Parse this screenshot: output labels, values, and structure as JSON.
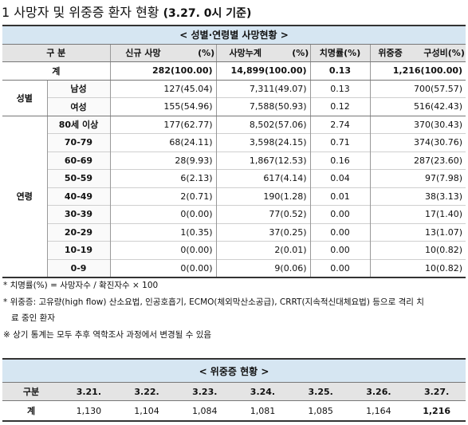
{
  "title": {
    "main": "1  사망자 및 위중증 환자 현황 ",
    "sub": "(3.27. 0시 기준)"
  },
  "table1": {
    "caption": "< 성별·연령별 사망현황 >",
    "headers": {
      "category": "구 분",
      "new_deaths": "신규 사망",
      "new_deaths_pct": "(%)",
      "cum_deaths": "사망누계",
      "cum_deaths_pct": "(%)",
      "fatality": "치명률(%)",
      "critical": "위중증",
      "critical_ratio": "구성비(%)"
    },
    "total": {
      "label": "계",
      "new": "282(100.00)",
      "cum": "14,899(100.00)",
      "rate": "0.13",
      "critical": "1,216(100.00)"
    },
    "sex_group": "성별",
    "sex_rows": [
      {
        "label": "남성",
        "new": "127(45.04)",
        "cum": "7,311(49.07)",
        "rate": "0.13",
        "critical": "700(57.57)"
      },
      {
        "label": "여성",
        "new": "155(54.96)",
        "cum": "7,588(50.93)",
        "rate": "0.12",
        "critical": "516(42.43)"
      }
    ],
    "age_group": "연령",
    "age_rows": [
      {
        "label": "80세 이상",
        "new": "177(62.77)",
        "cum": "8,502(57.06)",
        "rate": "2.74",
        "critical": "370(30.43)"
      },
      {
        "label": "70-79",
        "new": "68(24.11)",
        "cum": "3,598(24.15)",
        "rate": "0.71",
        "critical": "374(30.76)"
      },
      {
        "label": "60-69",
        "new": "28(9.93)",
        "cum": "1,867(12.53)",
        "rate": "0.16",
        "critical": "287(23.60)"
      },
      {
        "label": "50-59",
        "new": "6(2.13)",
        "cum": "617(4.14)",
        "rate": "0.04",
        "critical": "97(7.98)"
      },
      {
        "label": "40-49",
        "new": "2(0.71)",
        "cum": "190(1.28)",
        "rate": "0.01",
        "critical": "38(3.13)"
      },
      {
        "label": "30-39",
        "new": "0(0.00)",
        "cum": "77(0.52)",
        "rate": "0.00",
        "critical": "17(1.40)"
      },
      {
        "label": "20-29",
        "new": "1(0.35)",
        "cum": "37(0.25)",
        "rate": "0.00",
        "critical": "13(1.07)"
      },
      {
        "label": "10-19",
        "new": "0(0.00)",
        "cum": "2(0.01)",
        "rate": "0.00",
        "critical": "10(0.82)"
      },
      {
        "label": "0-9",
        "new": "0(0.00)",
        "cum": "9(0.06)",
        "rate": "0.00",
        "critical": "10(0.82)"
      }
    ]
  },
  "notes": [
    "* 치명률(%) = 사망자수 / 확진자수 × 100",
    "* 위중증: 고유량(high flow) 산소요법, 인공호흡기, ECMO(체외막산소공급), CRRT(지속적신대체요법) 등으로 격리 치",
    "  료 중인 환자",
    "※ 상기 통계는 모두 추후 역학조사 과정에서 변경될 수 있음"
  ],
  "table2": {
    "caption": "< 위중증 현황 >",
    "headers": [
      "구분",
      "3.21.",
      "3.22.",
      "3.23.",
      "3.24.",
      "3.25.",
      "3.26.",
      "3.27."
    ],
    "row": [
      "계",
      "1,130",
      "1,104",
      "1,084",
      "1,081",
      "1,085",
      "1,164",
      "1,216"
    ]
  }
}
